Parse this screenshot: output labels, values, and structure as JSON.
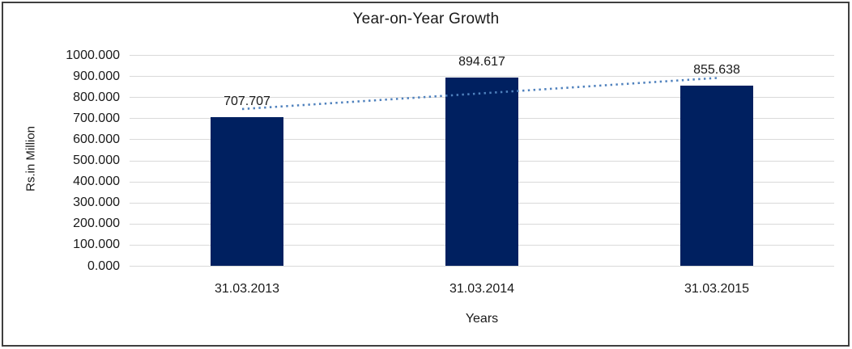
{
  "frame": {
    "background": "#ffffff",
    "border_color": "#3f3f3f"
  },
  "chart_data": {
    "type": "bar",
    "title": "Year-on-Year Growth",
    "xlabel": "Years",
    "ylabel": "Rs.in Million",
    "categories": [
      "31.03.2013",
      "31.03.2014",
      "31.03.2015"
    ],
    "series": [
      {
        "name": "Rs.in Million",
        "values": [
          707.707,
          894.617,
          855.638
        ]
      }
    ],
    "data_labels": [
      "707.707",
      "894.617",
      "855.638"
    ],
    "ylim": [
      0,
      1000
    ],
    "y_ticks": [
      0,
      100,
      200,
      300,
      400,
      500,
      600,
      700,
      800,
      900,
      1000
    ],
    "y_tick_labels": [
      "0.000",
      "100.000",
      "200.000",
      "300.000",
      "400.000",
      "500.000",
      "600.000",
      "700.000",
      "800.000",
      "900.000",
      "1000.000"
    ],
    "grid": true,
    "legend": "none",
    "trendline": {
      "type": "linear",
      "style": "dotted"
    },
    "colors": {
      "bar": "#002060",
      "trendline": "#4f81bd",
      "gridline": "#d9d9d9",
      "text": "#1a1a1a"
    }
  }
}
